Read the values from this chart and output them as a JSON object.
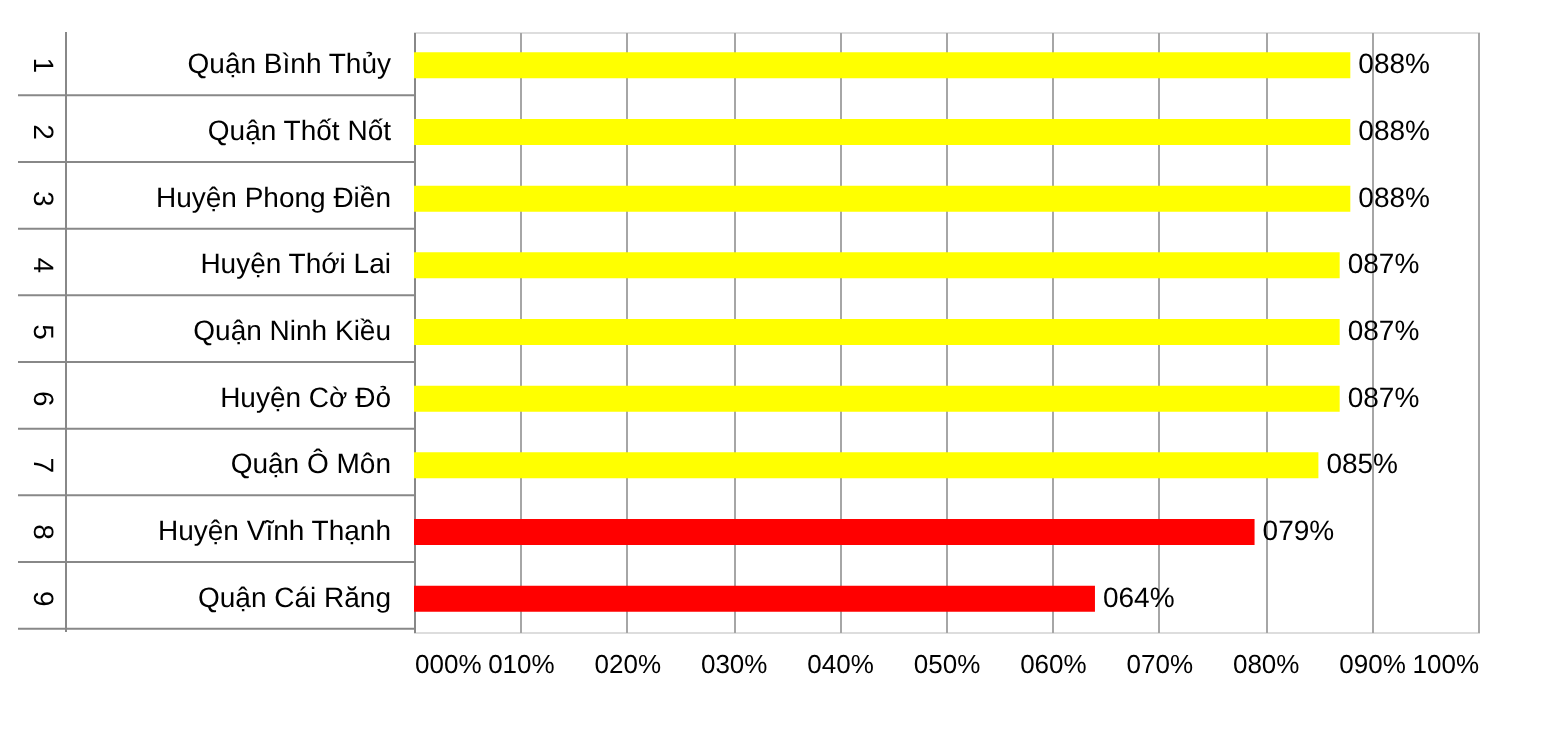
{
  "chart_data": {
    "type": "bar",
    "orientation": "horizontal",
    "categories": [
      "Quận Bình Thủy",
      "Quận Thốt Nốt",
      "Huyện Phong Điền",
      "Huyện Thới Lai",
      "Quận Ninh Kiều",
      "Huyện Cờ Đỏ",
      "Quận Ô Môn",
      "Huyện Vĩnh Thạnh",
      "Quận Cái Răng"
    ],
    "values": [
      88,
      88,
      88,
      87,
      87,
      87,
      85,
      79,
      64
    ],
    "colors": [
      "#ffff00",
      "#ffff00",
      "#ffff00",
      "#ffff00",
      "#ffff00",
      "#ffff00",
      "#ffff00",
      "#ff0000",
      "#ff0000"
    ],
    "value_labels": [
      "088%",
      "088%",
      "088%",
      "087%",
      "087%",
      "087%",
      "085%",
      "079%",
      "064%"
    ],
    "xlim": [
      0,
      100
    ],
    "xticks": [
      {
        "value": 0,
        "label": "000%"
      },
      {
        "value": 10,
        "label": "010%"
      },
      {
        "value": 20,
        "label": "020%"
      },
      {
        "value": 30,
        "label": "030%"
      },
      {
        "value": 40,
        "label": "040%"
      },
      {
        "value": 50,
        "label": "050%"
      },
      {
        "value": 60,
        "label": "060%"
      },
      {
        "value": 70,
        "label": "070%"
      },
      {
        "value": 80,
        "label": "080%"
      },
      {
        "value": 90,
        "label": "090%"
      },
      {
        "value": 100,
        "label": "100%"
      }
    ],
    "annotations": [
      "1",
      "2",
      "3",
      "4",
      "5",
      "6",
      "7",
      "8",
      "9"
    ],
    "grid": "x"
  }
}
